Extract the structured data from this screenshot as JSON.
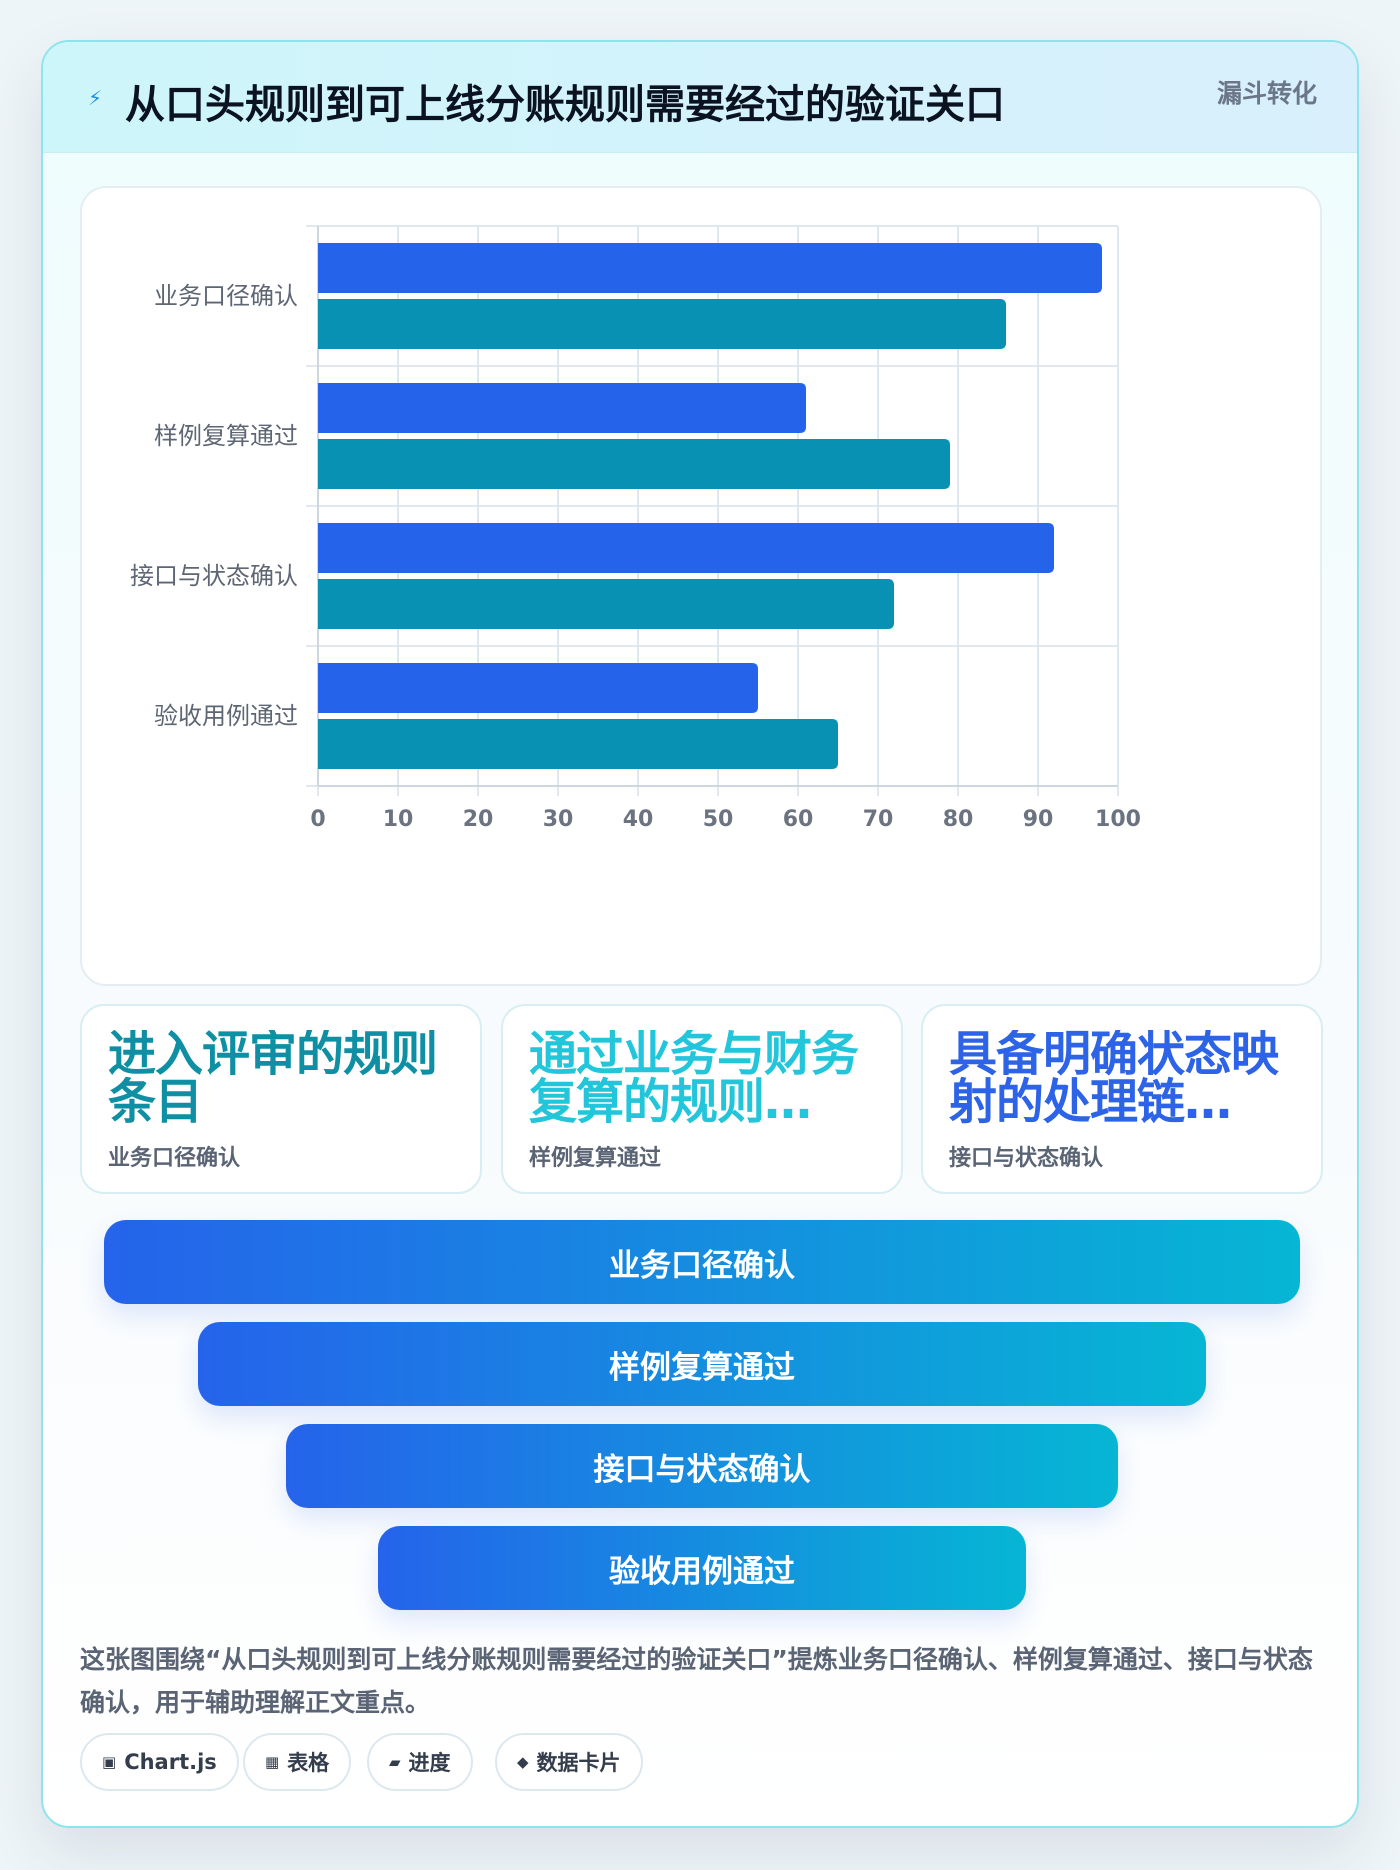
{
  "header": {
    "title": "从口头规则到可上线分账规则需要经过的验证关口",
    "tag": "漏斗转化",
    "icon": "lightning-icon"
  },
  "chart_data": {
    "type": "bar",
    "orientation": "horizontal",
    "categories": [
      "业务口径确认",
      "样例复算通过",
      "接口与状态确认",
      "验收用例通过"
    ],
    "series": [
      {
        "values": [
          98,
          61,
          92,
          55
        ],
        "color": "#2563eb"
      },
      {
        "values": [
          86,
          79,
          72,
          65
        ],
        "color": "#0891b2"
      }
    ],
    "xlim": [
      0,
      100
    ],
    "xticks": [
      0,
      10,
      20,
      30,
      40,
      50,
      60,
      70,
      80,
      90,
      100
    ],
    "grid": true,
    "legend": "none"
  },
  "stats": [
    {
      "value": "进入评审的规则条目",
      "label": "业务口径确认",
      "color": "#0e8fa3"
    },
    {
      "value": "通过业务与财务复算的规则…",
      "label": "样例复算通过",
      "color": "#22c5da"
    },
    {
      "value": "具备明确状态映射的处理链…",
      "label": "接口与状态确认",
      "color": "#2d63e6"
    }
  ],
  "funnel": [
    {
      "label": "业务口径确认"
    },
    {
      "label": "样例复算通过"
    },
    {
      "label": "接口与状态确认"
    },
    {
      "label": "验收用例通过"
    }
  ],
  "summary": "这张图围绕“从口头规则到可上线分账规则需要经过的验证关口”提炼业务口径确认、样例复算通过、接口与状态确认，用于辅助理解正文重点。",
  "tags": [
    {
      "icon": "chart-icon",
      "glyph": "▣",
      "label": "Chart.js"
    },
    {
      "icon": "table-icon",
      "glyph": "▦",
      "label": "表格"
    },
    {
      "icon": "progress-icon",
      "glyph": "▰",
      "label": "进度"
    },
    {
      "icon": "data-card-icon",
      "glyph": "◆",
      "label": "数据卡片"
    }
  ]
}
